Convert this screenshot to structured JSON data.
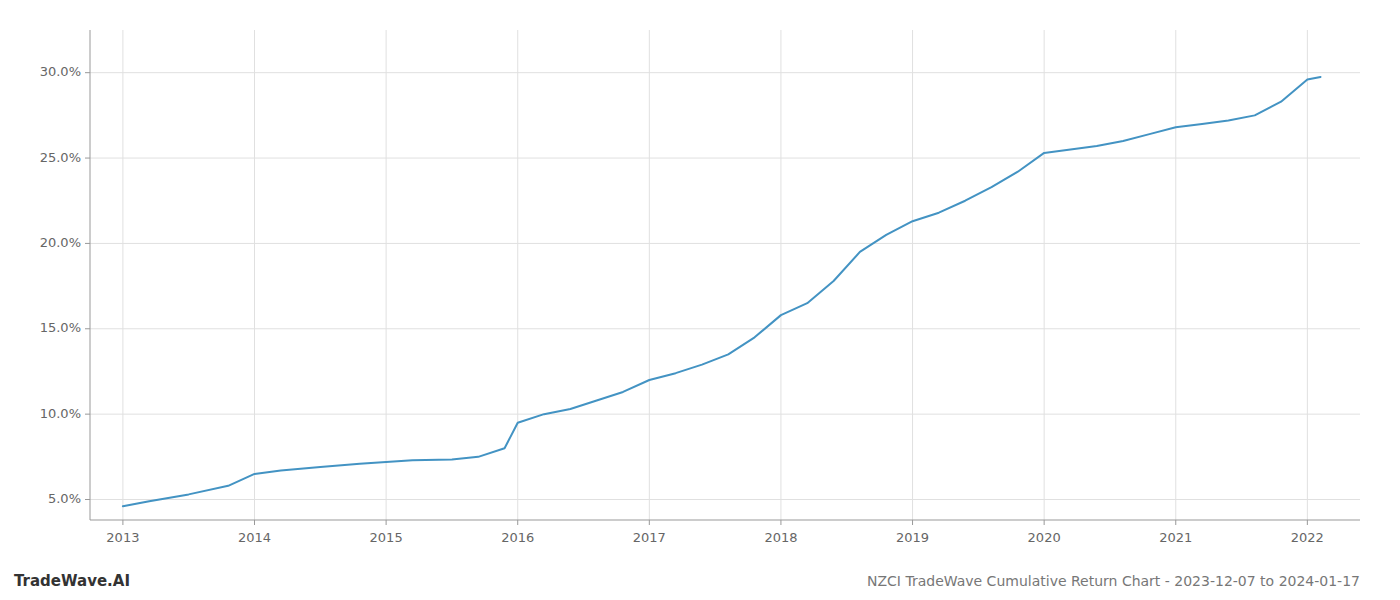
{
  "chart_data": {
    "type": "line",
    "title": "NZCI TradeWave Cumulative Return Chart - 2023-12-07 to 2024-01-17",
    "annotations": [
      "TradeWave.AI"
    ],
    "x": [
      2013.0,
      2013.2,
      2013.5,
      2013.8,
      2014.0,
      2014.2,
      2014.5,
      2014.8,
      2015.0,
      2015.2,
      2015.5,
      2015.7,
      2015.9,
      2016.0,
      2016.2,
      2016.4,
      2016.6,
      2016.8,
      2017.0,
      2017.2,
      2017.4,
      2017.6,
      2017.8,
      2018.0,
      2018.2,
      2018.4,
      2018.6,
      2018.8,
      2019.0,
      2019.2,
      2019.4,
      2019.6,
      2019.8,
      2020.0,
      2020.2,
      2020.4,
      2020.6,
      2020.8,
      2021.0,
      2021.2,
      2021.4,
      2021.6,
      2021.8,
      2022.0,
      2022.1
    ],
    "values": [
      4.6,
      4.9,
      5.3,
      5.8,
      6.5,
      6.7,
      6.9,
      7.1,
      7.2,
      7.3,
      7.35,
      7.5,
      8.0,
      9.5,
      10.0,
      10.3,
      10.8,
      11.3,
      12.0,
      12.4,
      12.9,
      13.5,
      14.5,
      15.8,
      16.5,
      17.8,
      19.5,
      20.5,
      21.3,
      21.8,
      22.5,
      23.3,
      24.2,
      25.3,
      25.5,
      25.7,
      26.0,
      26.4,
      26.8,
      27.0,
      27.2,
      27.5,
      28.3,
      29.6,
      29.75
    ],
    "color": "#4393c3",
    "xlim": [
      2012.75,
      2022.4
    ],
    "ylim": [
      3.8,
      32.5
    ],
    "xticks": [
      2013,
      2014,
      2015,
      2016,
      2017,
      2018,
      2019,
      2020,
      2021,
      2022
    ],
    "yticks": [
      {
        "value": 5.0,
        "label": "5.0%"
      },
      {
        "value": 10.0,
        "label": "10.0%"
      },
      {
        "value": 15.0,
        "label": "15.0%"
      },
      {
        "value": 20.0,
        "label": "20.0%"
      },
      {
        "value": 25.0,
        "label": "25.0%"
      },
      {
        "value": 30.0,
        "label": "30.0%"
      }
    ],
    "grid": true
  }
}
